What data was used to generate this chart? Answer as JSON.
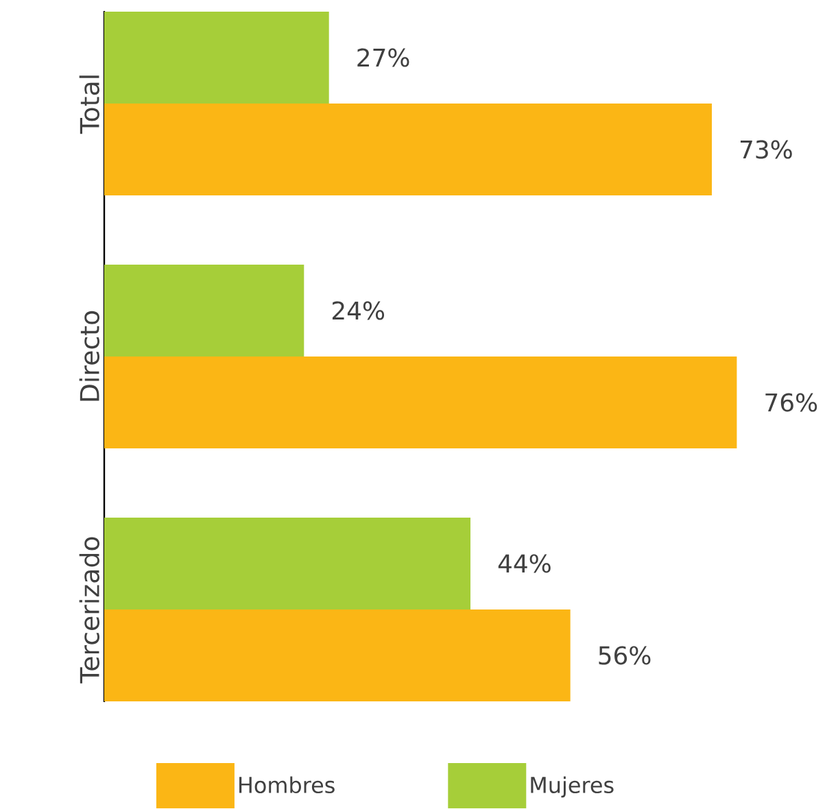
{
  "chart_data": {
    "type": "bar",
    "orientation": "horizontal",
    "categories": [
      "Total",
      "Directo",
      "Tercerizado"
    ],
    "series": [
      {
        "name": "Hombres",
        "color": "#fbb615",
        "values": [
          73,
          76,
          56
        ],
        "value_labels": [
          "73%",
          "76%",
          "56%"
        ]
      },
      {
        "name": "Mujeres",
        "color": "#a6ce39",
        "values": [
          27,
          24,
          44
        ],
        "value_labels": [
          "27%",
          "24%",
          "44%"
        ]
      }
    ],
    "legend": "bottom"
  }
}
